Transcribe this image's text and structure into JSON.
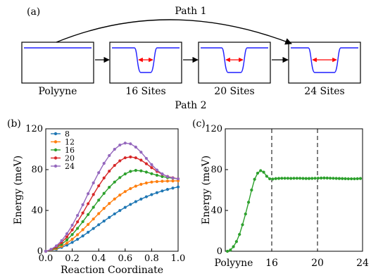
{
  "panel_a": {
    "panel_label": "(a)",
    "path1_label": "Path 1",
    "path2_label": "Path 2",
    "boxes": [
      {
        "label": "Polyyne",
        "well": 0
      },
      {
        "label": "16 Sites",
        "well": 16
      },
      {
        "label": "20 Sites",
        "well": 20
      },
      {
        "label": "24 Sites",
        "well": 24
      }
    ],
    "colors": {
      "well_line": "#1f1fff",
      "arrow_red": "#ff0000",
      "arrow_black": "#000000"
    }
  },
  "chart_data": [
    {
      "panel_label": "(b)",
      "type": "line",
      "xlabel": "Reaction Coordinate",
      "ylabel": "Energy (meV)",
      "xlim": [
        0,
        1.0
      ],
      "ylim": [
        0,
        120
      ],
      "xticks": [
        "0.0",
        "0.2",
        "0.4",
        "0.6",
        "0.8",
        "1.0"
      ],
      "yticks": [
        "0",
        "40",
        "80",
        "120"
      ],
      "legend_position": "top-left",
      "x": [
        0,
        0.04,
        0.08,
        0.12,
        0.16,
        0.2,
        0.24,
        0.28,
        0.32,
        0.36,
        0.4,
        0.44,
        0.48,
        0.52,
        0.56,
        0.6,
        0.64,
        0.68,
        0.72,
        0.76,
        0.8,
        0.84,
        0.88,
        0.92,
        0.96,
        1.0
      ],
      "series": [
        {
          "name": "8",
          "color": "#1f77b4",
          "values": [
            0,
            0.8,
            2,
            3.8,
            6,
            8.7,
            11.7,
            15,
            18.6,
            22.3,
            26,
            29.6,
            33.2,
            36.6,
            39.9,
            43,
            45.9,
            48.6,
            51.1,
            53.4,
            55.5,
            57.4,
            59.1,
            60.6,
            61.9,
            63
          ]
        },
        {
          "name": "12",
          "color": "#ff7f0e",
          "values": [
            0,
            1,
            2.6,
            4.9,
            8,
            11.8,
            16.2,
            21.1,
            26.3,
            31.6,
            36.9,
            42,
            46.8,
            51.2,
            55.1,
            58.5,
            61.4,
            63.8,
            65.6,
            66.9,
            67.8,
            68.3,
            68.6,
            68.8,
            68.9,
            69
          ]
        },
        {
          "name": "16",
          "color": "#2ca02c",
          "values": [
            0,
            1.3,
            3.5,
            6.8,
            11.1,
            16.4,
            22.4,
            29,
            36,
            43.1,
            50.1,
            56.7,
            62.7,
            67.8,
            72.2,
            75.8,
            78.3,
            79.2,
            78.8,
            77.6,
            76,
            74.5,
            73.2,
            72.2,
            71.6,
            71
          ]
        },
        {
          "name": "20",
          "color": "#d62728",
          "values": [
            0,
            1.6,
            4.4,
            8.6,
            14.1,
            20.9,
            28.8,
            37.5,
            46.6,
            55.6,
            64.1,
            71.8,
            78.5,
            84.1,
            88.6,
            91.6,
            92.4,
            91.6,
            89.3,
            85.8,
            81.9,
            78.3,
            75.4,
            73.3,
            72,
            71
          ]
        },
        {
          "name": "24",
          "color": "#9467bd",
          "values": [
            0,
            1.9,
            5.3,
            10.4,
            17.2,
            25.5,
            35.1,
            45.6,
            56.4,
            67,
            77,
            86.1,
            93.8,
            99.9,
            104.1,
            106,
            105.3,
            102.1,
            97.1,
            91,
            84.9,
            79.6,
            75.8,
            73.2,
            71.7,
            71
          ]
        }
      ]
    },
    {
      "panel_label": "(c)",
      "type": "line",
      "xlabel": "",
      "ylabel": "Energy (meV)",
      "ylim": [
        0,
        120
      ],
      "yticks": [
        "0",
        "40",
        "80",
        "120"
      ],
      "xticks": [
        "Polyyne",
        "16",
        "20",
        "24"
      ],
      "dashed_lines_at": [
        "16",
        "20"
      ],
      "series": [
        {
          "name": "",
          "color": "#2ca02c",
          "values": [
            0,
            1.2,
            4.5,
            9.5,
            16.5,
            26,
            36.5,
            48,
            60,
            70.5,
            76.5,
            79,
            77.5,
            73.5,
            71,
            70.8,
            71.2,
            71.4,
            71.5,
            71.5,
            71.5,
            71.4,
            71.5,
            71.5,
            71.5,
            71.4,
            71.3,
            71.3,
            71.4,
            71.5,
            71.6,
            71.7,
            71.8,
            71.7,
            71.6,
            71.5,
            71.4,
            71.3,
            71.2,
            71.1,
            71,
            71,
            71,
            71.1,
            71.3
          ]
        }
      ]
    }
  ]
}
